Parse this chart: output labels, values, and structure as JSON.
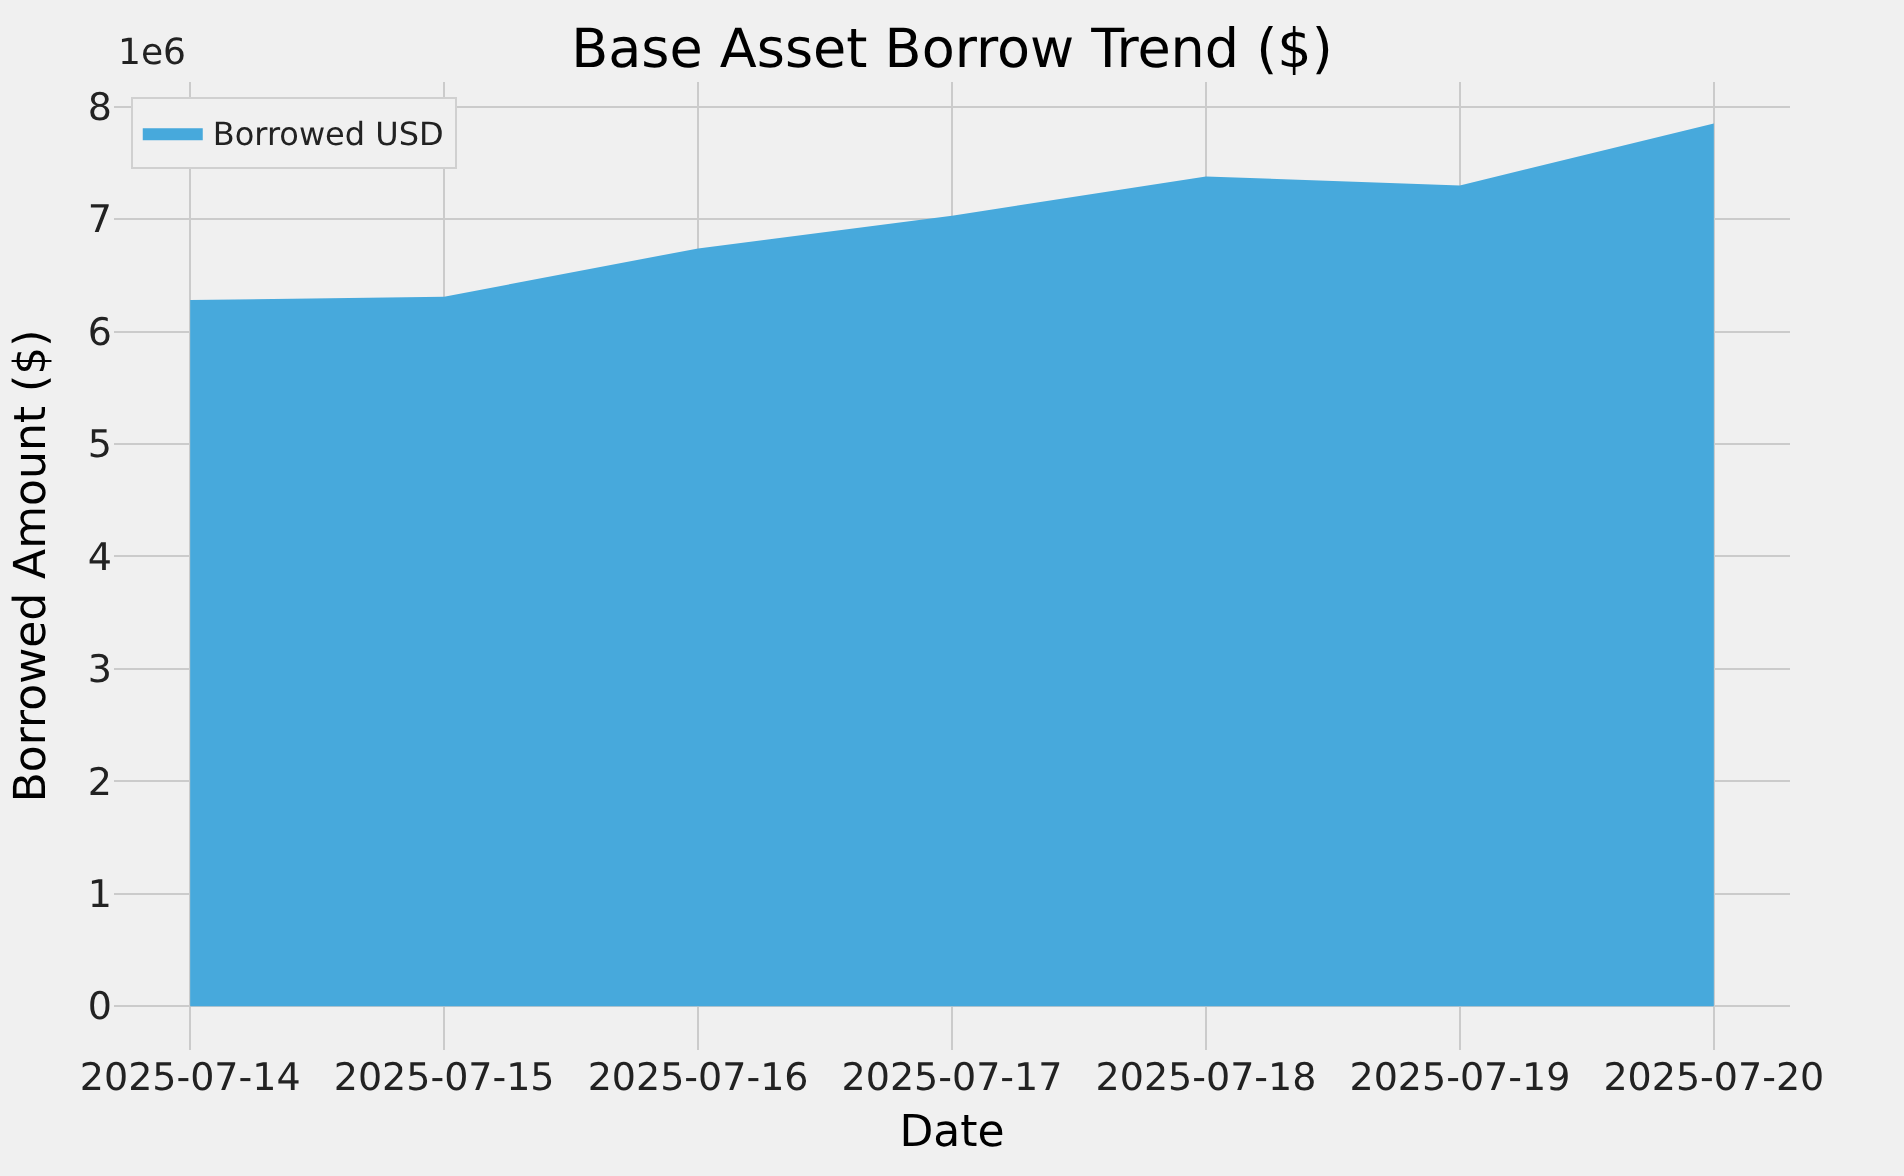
{
  "chart_data": {
    "type": "area",
    "title": "Base Asset Borrow Trend ($)",
    "xlabel": "Date",
    "ylabel": "Borrowed Amount ($)",
    "x": [
      "2025-07-14",
      "2025-07-15",
      "2025-07-16",
      "2025-07-17",
      "2025-07-18",
      "2025-07-19",
      "2025-07-20"
    ],
    "series": [
      {
        "name": "Borrowed USD",
        "color": "#47a9dc",
        "values": [
          6.28,
          6.31,
          6.74,
          7.03,
          7.38,
          7.3,
          7.85
        ]
      }
    ],
    "xlim": [
      "2025-07-13T16:48",
      "2025-07-20T07:12"
    ],
    "xticks": [
      "2025-07-14",
      "2025-07-15",
      "2025-07-16",
      "2025-07-17",
      "2025-07-18",
      "2025-07-19",
      "2025-07-20"
    ],
    "ylim": [
      -0.39,
      8.22
    ],
    "yticks": [
      0,
      1,
      2,
      3,
      4,
      5,
      6,
      7,
      8
    ],
    "annotations": [
      "1e6"
    ],
    "grid": true,
    "legend": "top left"
  }
}
